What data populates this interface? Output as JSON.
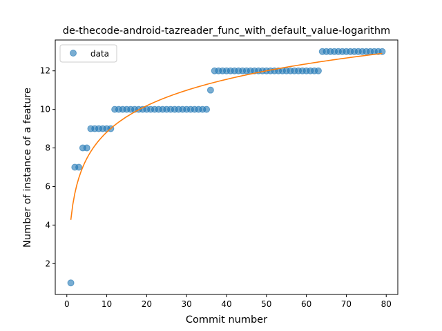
{
  "chart_data": {
    "type": "scatter",
    "title": "de-thecode-android-tazreader_func_with_default_value-logarithm",
    "xlabel": "Commit number",
    "ylabel": "Number of instance of a feature",
    "xlim": [
      -2.9,
      82.9
    ],
    "ylim": [
      0.4,
      13.6
    ],
    "xticks": [
      0,
      10,
      20,
      30,
      40,
      50,
      60,
      70,
      80
    ],
    "yticks": [
      2,
      4,
      6,
      8,
      10,
      12
    ],
    "grid": false,
    "legend": {
      "position": "top-left",
      "entries": [
        "data"
      ]
    },
    "series": [
      {
        "name": "data",
        "kind": "scatter",
        "color": "#1f77b4",
        "x": [
          1,
          2,
          3,
          4,
          5,
          6,
          7,
          8,
          9,
          10,
          11,
          12,
          13,
          14,
          15,
          16,
          17,
          18,
          19,
          20,
          21,
          22,
          23,
          24,
          25,
          26,
          27,
          28,
          29,
          30,
          31,
          32,
          33,
          34,
          35,
          36,
          37,
          38,
          39,
          40,
          41,
          42,
          43,
          44,
          45,
          46,
          47,
          48,
          49,
          50,
          51,
          52,
          53,
          54,
          55,
          56,
          57,
          58,
          59,
          60,
          61,
          62,
          63,
          64,
          65,
          66,
          67,
          68,
          69,
          70,
          71,
          72,
          73,
          74,
          75,
          76,
          77,
          78,
          79
        ],
        "y": [
          1,
          7,
          7,
          8,
          8,
          9,
          9,
          9,
          9,
          9,
          9,
          10,
          10,
          10,
          10,
          10,
          10,
          10,
          10,
          10,
          10,
          10,
          10,
          10,
          10,
          10,
          10,
          10,
          10,
          10,
          10,
          10,
          10,
          10,
          10,
          11,
          12,
          12,
          12,
          12,
          12,
          12,
          12,
          12,
          12,
          12,
          12,
          12,
          12,
          12,
          12,
          12,
          12,
          12,
          12,
          12,
          12,
          12,
          12,
          12,
          12,
          12,
          12,
          13,
          13,
          13,
          13,
          13,
          13,
          13,
          13,
          13,
          13,
          13,
          13,
          13,
          13,
          13,
          13
        ]
      },
      {
        "name": "",
        "kind": "line",
        "color": "#ff7f0e",
        "model": "logarithmic",
        "a": 4.27,
        "b": 1.976
      }
    ]
  }
}
